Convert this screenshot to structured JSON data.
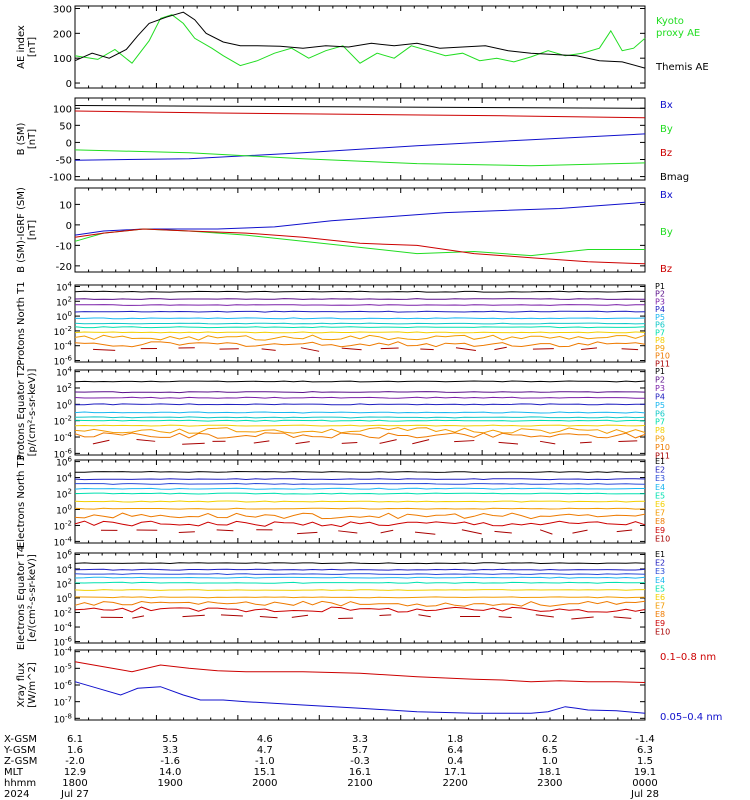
{
  "colors": {
    "black": "#000000",
    "red": "#cc0000",
    "green": "#22dd22",
    "blue": "#1010cc",
    "purple": "#5a0f8a",
    "violet": "#7a1fa8",
    "indigo": "#2020c0",
    "blue2": "#2a4bd8",
    "cyan": "#19b7f0",
    "teal": "#10c8c8",
    "aqua": "#00e0b0",
    "gold": "#f2d000",
    "orange": "#f29a00",
    "darkorange": "#ee7a00",
    "darkred": "#a80000"
  },
  "chart_data": [
    {
      "type": "line",
      "ylabel": "AE index [nT]",
      "yticks": [
        "300",
        "200",
        "100",
        "0"
      ],
      "ylim": [
        -20,
        310
      ],
      "xlim": [
        0,
        1
      ],
      "series": [
        {
          "name": "Kyoto proxy AE",
          "color": "green",
          "stroke_width": 1,
          "x": [
            0,
            0.04,
            0.07,
            0.1,
            0.13,
            0.15,
            0.17,
            0.19,
            0.21,
            0.24,
            0.26,
            0.29,
            0.32,
            0.35,
            0.38,
            0.41,
            0.44,
            0.47,
            0.5,
            0.53,
            0.56,
            0.59,
            0.62,
            0.65,
            0.68,
            0.71,
            0.74,
            0.77,
            0.8,
            0.83,
            0.86,
            0.89,
            0.92,
            0.94,
            0.96,
            0.98,
            1.0
          ],
          "y": [
            110,
            95,
            135,
            80,
            170,
            260,
            275,
            240,
            180,
            140,
            110,
            70,
            90,
            120,
            140,
            100,
            130,
            150,
            80,
            120,
            100,
            150,
            130,
            110,
            120,
            90,
            100,
            85,
            105,
            130,
            110,
            120,
            140,
            210,
            130,
            140,
            180
          ]
        },
        {
          "name": "Themis AE",
          "color": "black",
          "stroke_width": 1,
          "x": [
            0,
            0.03,
            0.06,
            0.09,
            0.11,
            0.13,
            0.16,
            0.19,
            0.21,
            0.23,
            0.26,
            0.29,
            0.32,
            0.36,
            0.4,
            0.44,
            0.48,
            0.52,
            0.56,
            0.6,
            0.64,
            0.68,
            0.72,
            0.76,
            0.8,
            0.84,
            0.88,
            0.92,
            0.96,
            1.0
          ],
          "y": [
            90,
            120,
            100,
            135,
            190,
            240,
            265,
            285,
            255,
            200,
            165,
            150,
            150,
            148,
            140,
            150,
            145,
            160,
            150,
            160,
            140,
            145,
            150,
            130,
            120,
            115,
            110,
            90,
            85,
            60
          ]
        }
      ],
      "legend": [
        {
          "text": "Kyoto",
          "color": "green"
        },
        {
          "text": "proxy AE",
          "color": "green"
        },
        {
          "text": "Themis AE",
          "color": "black"
        }
      ]
    },
    {
      "type": "line",
      "ylabel": "B (SM) [nT]",
      "yticks": [
        "100",
        "50",
        "0",
        "-50",
        "-100"
      ],
      "ylim": [
        -110,
        130
      ],
      "xlim": [
        0,
        1
      ],
      "series": [
        {
          "name": "Bmag",
          "color": "black",
          "x": [
            0,
            0.25,
            0.5,
            0.75,
            1.0
          ],
          "y": [
            108,
            106,
            104,
            102,
            100
          ]
        },
        {
          "name": "Bz",
          "color": "red",
          "x": [
            0,
            0.25,
            0.5,
            0.75,
            1.0
          ],
          "y": [
            92,
            86,
            82,
            78,
            72
          ]
        },
        {
          "name": "Bx",
          "color": "blue",
          "x": [
            0,
            0.2,
            0.4,
            0.6,
            0.8,
            1.0
          ],
          "y": [
            -52,
            -48,
            -30,
            -10,
            8,
            25
          ]
        },
        {
          "name": "By",
          "color": "green",
          "x": [
            0,
            0.2,
            0.4,
            0.6,
            0.8,
            1.0
          ],
          "y": [
            -22,
            -30,
            -48,
            -62,
            -68,
            -60
          ]
        }
      ],
      "legend": [
        {
          "text": "Bx",
          "color": "blue"
        },
        {
          "text": "By",
          "color": "green"
        },
        {
          "text": "Bz",
          "color": "red"
        },
        {
          "text": "Bmag",
          "color": "black"
        }
      ]
    },
    {
      "type": "line",
      "ylabel": "B (SM)-IGRF (SM) [nT]",
      "yticks": [
        "10",
        "0",
        "-10",
        "-20"
      ],
      "ylim": [
        -23,
        18
      ],
      "xlim": [
        0,
        1
      ],
      "series": [
        {
          "name": "Bx",
          "color": "blue",
          "x": [
            0,
            0.05,
            0.12,
            0.25,
            0.35,
            0.45,
            0.55,
            0.65,
            0.75,
            0.85,
            0.95,
            1.0
          ],
          "y": [
            -5,
            -3,
            -2,
            -2,
            -1,
            2,
            4,
            6,
            7,
            8,
            10,
            11
          ]
        },
        {
          "name": "By",
          "color": "green",
          "x": [
            0,
            0.05,
            0.12,
            0.2,
            0.3,
            0.4,
            0.5,
            0.6,
            0.7,
            0.8,
            0.9,
            1.0
          ],
          "y": [
            -8,
            -4,
            -2,
            -3,
            -5,
            -8,
            -11,
            -14,
            -13,
            -15,
            -12,
            -12
          ]
        },
        {
          "name": "Bz",
          "color": "red",
          "x": [
            0,
            0.05,
            0.12,
            0.2,
            0.3,
            0.4,
            0.5,
            0.6,
            0.7,
            0.8,
            0.9,
            1.0
          ],
          "y": [
            -6,
            -4,
            -2,
            -3,
            -4,
            -6,
            -9,
            -10,
            -14,
            -16,
            -18,
            -19
          ]
        }
      ],
      "legend": [
        {
          "text": "Bx",
          "color": "blue"
        },
        {
          "text": "By",
          "color": "green"
        },
        {
          "text": "Bz",
          "color": "red"
        }
      ]
    },
    {
      "type": "line",
      "ylabel": "Protons North T1",
      "yscale": "log",
      "ylim": [
        -6.2,
        4.2
      ],
      "tick_exps": [
        4,
        2,
        0,
        -2,
        -4,
        -6
      ],
      "tick_base": "10",
      "channels": [
        {
          "label": "P1",
          "color": "black",
          "level": 3.3
        },
        {
          "label": "P2",
          "color": "purple",
          "level": 2.3
        },
        {
          "label": "P3",
          "color": "violet",
          "level": 1.5
        },
        {
          "label": "P4",
          "color": "indigo",
          "level": 0.6
        },
        {
          "label": "P5",
          "color": "cyan",
          "level": -0.3
        },
        {
          "label": "P6",
          "color": "teal",
          "level": -1.0
        },
        {
          "label": "P7",
          "color": "aqua",
          "level": -1.5
        },
        {
          "label": "P8",
          "color": "gold",
          "level": -2.2
        },
        {
          "label": "P9",
          "color": "orange",
          "level": -2.9
        },
        {
          "label": "P10",
          "color": "darkorange",
          "level": -3.8
        },
        {
          "label": "P11",
          "color": "darkred",
          "level": -4.5
        }
      ]
    },
    {
      "type": "line",
      "ylabel": "Protons Equator T2 [p/(cm²-s-sr-keV)]",
      "yscale": "log",
      "ylim": [
        -6.2,
        4.2
      ],
      "tick_exps": [
        4,
        2,
        0,
        -2,
        -4,
        -6
      ],
      "tick_base": "10",
      "channels": [
        {
          "label": "P1",
          "color": "black",
          "level": 2.8
        },
        {
          "label": "P2",
          "color": "purple",
          "level": 1.5
        },
        {
          "label": "P3",
          "color": "violet",
          "level": 0.8
        },
        {
          "label": "P4",
          "color": "indigo",
          "level": 0.0
        },
        {
          "label": "P5",
          "color": "cyan",
          "level": -1.0
        },
        {
          "label": "P6",
          "color": "teal",
          "level": -1.6
        },
        {
          "label": "P7",
          "color": "aqua",
          "level": -2.0
        },
        {
          "label": "P8",
          "color": "gold",
          "level": -2.6
        },
        {
          "label": "P9",
          "color": "orange",
          "level": -3.2
        },
        {
          "label": "P10",
          "color": "darkorange",
          "level": -3.8
        },
        {
          "label": "P11",
          "color": "darkred",
          "level": -4.6
        }
      ]
    },
    {
      "type": "line",
      "ylabel": "Electrons North T3",
      "yscale": "log",
      "ylim": [
        -4.2,
        6.2
      ],
      "tick_exps": [
        6,
        4,
        2,
        0,
        -2,
        -4
      ],
      "tick_base": "10",
      "channels": [
        {
          "label": "E1",
          "color": "black",
          "level": 4.7
        },
        {
          "label": "E2",
          "color": "indigo",
          "level": 3.8
        },
        {
          "label": "E3",
          "color": "blue2",
          "level": 3.2
        },
        {
          "label": "E4",
          "color": "cyan",
          "level": 2.6
        },
        {
          "label": "E5",
          "color": "aqua",
          "level": 2.0
        },
        {
          "label": "E6",
          "color": "gold",
          "level": 1.0
        },
        {
          "label": "E7",
          "color": "orange",
          "level": 0.1
        },
        {
          "label": "E8",
          "color": "darkorange",
          "level": -0.8
        },
        {
          "label": "E9",
          "color": "red",
          "level": -1.8
        },
        {
          "label": "E10",
          "color": "darkred",
          "level": -2.8
        }
      ]
    },
    {
      "type": "line",
      "ylabel": "Electrons Equator T4 [e/(cm²-s-sr-keV)]",
      "yscale": "log",
      "ylim": [
        -6.2,
        6.2
      ],
      "tick_exps": [
        6,
        4,
        2,
        0,
        -2,
        -4,
        -6
      ],
      "tick_base": "10",
      "channels": [
        {
          "label": "E1",
          "color": "black",
          "level": 4.8
        },
        {
          "label": "E2",
          "color": "indigo",
          "level": 3.9
        },
        {
          "label": "E3",
          "color": "blue2",
          "level": 3.3
        },
        {
          "label": "E4",
          "color": "cyan",
          "level": 2.8
        },
        {
          "label": "E5",
          "color": "aqua",
          "level": 2.1
        },
        {
          "label": "E6",
          "color": "gold",
          "level": 1.1
        },
        {
          "label": "E7",
          "color": "orange",
          "level": 0.1
        },
        {
          "label": "E8",
          "color": "darkorange",
          "level": -0.8
        },
        {
          "label": "E9",
          "color": "red",
          "level": -1.6
        },
        {
          "label": "E10",
          "color": "darkred",
          "level": -2.6
        }
      ]
    },
    {
      "type": "line",
      "ylabel": "Xray flux [W/m^2]",
      "yscale": "log",
      "ylim": [
        -8.1,
        -3.9
      ],
      "tick_exps": [
        -4,
        -5,
        -6,
        -7,
        -8
      ],
      "tick_base": "10",
      "series": [
        {
          "name": "0.1–0.8 nm",
          "color": "red",
          "x": [
            0,
            0.05,
            0.1,
            0.15,
            0.2,
            0.25,
            0.3,
            0.4,
            0.5,
            0.6,
            0.7,
            0.75,
            0.8,
            0.85,
            0.9,
            0.95,
            1.0
          ],
          "y": [
            -4.6,
            -4.9,
            -5.2,
            -4.8,
            -5.0,
            -5.15,
            -5.2,
            -5.2,
            -5.3,
            -5.5,
            -5.65,
            -5.7,
            -5.8,
            -5.75,
            -5.8,
            -5.8,
            -5.85
          ]
        },
        {
          "name": "0.05–0.4 nm",
          "color": "blue",
          "x": [
            0,
            0.04,
            0.08,
            0.11,
            0.15,
            0.19,
            0.22,
            0.26,
            0.3,
            0.4,
            0.5,
            0.6,
            0.7,
            0.75,
            0.8,
            0.83,
            0.86,
            0.88,
            0.9,
            0.95,
            1.0
          ],
          "y": [
            -5.8,
            -6.2,
            -6.6,
            -6.2,
            -6.1,
            -6.6,
            -6.9,
            -6.9,
            -7.0,
            -7.2,
            -7.4,
            -7.6,
            -7.7,
            -7.7,
            -7.7,
            -7.6,
            -7.3,
            -7.4,
            -7.5,
            -7.55,
            -7.7
          ]
        }
      ],
      "legend": [
        {
          "text": "0.1–0.8 nm",
          "color": "red"
        },
        {
          "text": "0.05–0.4 nm",
          "color": "blue"
        }
      ]
    }
  ],
  "axis": {
    "row_labels": [
      "X-GSM",
      "Y-GSM",
      "Z-GSM",
      "MLT",
      "hhmm",
      "2024"
    ],
    "columns": [
      {
        "x": 0.0,
        "vals": [
          "6.1",
          "1.6",
          "-2.0",
          "12.9",
          "1800",
          "Jul 27"
        ]
      },
      {
        "x": 0.167,
        "vals": [
          "5.5",
          "3.3",
          "-1.6",
          "14.0",
          "1900",
          ""
        ]
      },
      {
        "x": 0.333,
        "vals": [
          "4.6",
          "4.7",
          "-1.0",
          "15.1",
          "2000",
          ""
        ]
      },
      {
        "x": 0.5,
        "vals": [
          "3.3",
          "5.7",
          "-0.3",
          "16.1",
          "2100",
          ""
        ]
      },
      {
        "x": 0.667,
        "vals": [
          "1.8",
          "6.4",
          "0.4",
          "17.1",
          "2200",
          ""
        ]
      },
      {
        "x": 0.833,
        "vals": [
          "0.2",
          "6.5",
          "1.0",
          "18.1",
          "2300",
          ""
        ]
      },
      {
        "x": 1.0,
        "vals": [
          "-1.4",
          "6.3",
          "1.5",
          "19.1",
          "0000",
          "Jul 28"
        ]
      }
    ]
  }
}
